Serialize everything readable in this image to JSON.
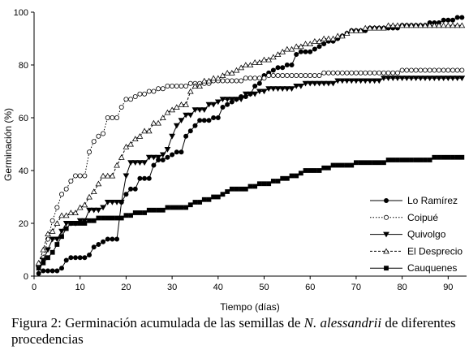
{
  "caption": {
    "prefix": "Figura 2: Germinación acumulada de las semillas de ",
    "species": "N. alessandrii",
    "suffix": " de diferentes procedencias"
  },
  "chart_data": {
    "type": "line",
    "title": "",
    "xlabel": "Tiempo (días)",
    "ylabel": "Germinación (%)",
    "xlim": [
      0,
      94
    ],
    "ylim": [
      0,
      100
    ],
    "xticks": [
      0,
      10,
      20,
      30,
      40,
      50,
      60,
      70,
      80,
      90
    ],
    "yticks": [
      0,
      20,
      40,
      60,
      80,
      100
    ],
    "grid": false,
    "legend_position": "bottom-right",
    "series": [
      {
        "name": "Lo Ramírez",
        "marker": "filled-circle",
        "line": "solid",
        "x": [
          1,
          2,
          3,
          4,
          5,
          6,
          7,
          8,
          9,
          10,
          11,
          12,
          13,
          14,
          15,
          16,
          17,
          18,
          19,
          20,
          21,
          22,
          23,
          24,
          25,
          26,
          27,
          28,
          29,
          30,
          31,
          32,
          33,
          34,
          35,
          36,
          37,
          38,
          39,
          40,
          41,
          42,
          43,
          44,
          45,
          46,
          47,
          48,
          49,
          50,
          51,
          52,
          53,
          54,
          55,
          56,
          57,
          58,
          59,
          60,
          61,
          62,
          63,
          64,
          65,
          66,
          67,
          68,
          69,
          70,
          71,
          72,
          73,
          74,
          75,
          76,
          77,
          78,
          79,
          80,
          81,
          82,
          83,
          84,
          85,
          86,
          87,
          88,
          89,
          90,
          91,
          92,
          93
        ],
        "y": [
          1,
          2,
          2,
          2,
          2,
          3,
          6,
          7,
          7,
          7,
          7,
          8,
          11,
          12,
          13,
          14,
          14,
          14,
          28,
          31,
          33,
          33,
          37,
          37,
          37,
          42,
          44,
          44,
          45,
          46,
          47,
          47,
          53,
          55,
          57,
          59,
          59,
          59,
          60,
          60,
          64,
          65,
          66,
          67,
          68,
          68,
          69,
          72,
          73,
          76,
          77,
          78,
          79,
          79,
          80,
          80,
          84,
          85,
          85,
          85,
          86,
          87,
          88,
          89,
          89,
          90,
          91,
          92,
          93,
          93,
          93,
          93,
          94,
          94,
          94,
          94,
          94,
          94,
          94,
          95,
          95,
          95,
          95,
          95,
          95,
          96,
          96,
          96,
          97,
          97,
          97,
          98,
          98
        ]
      },
      {
        "name": "Coipué",
        "marker": "open-circle",
        "line": "dotted",
        "x": [
          1,
          2,
          3,
          4,
          5,
          6,
          7,
          8,
          9,
          10,
          11,
          12,
          13,
          14,
          15,
          16,
          17,
          18,
          19,
          20,
          21,
          22,
          23,
          24,
          25,
          26,
          27,
          28,
          29,
          30,
          31,
          32,
          33,
          34,
          35,
          36,
          37,
          38,
          39,
          40,
          41,
          42,
          43,
          44,
          45,
          46,
          47,
          48,
          49,
          50,
          51,
          52,
          53,
          54,
          55,
          56,
          57,
          58,
          59,
          60,
          61,
          62,
          63,
          64,
          65,
          66,
          67,
          68,
          69,
          70,
          71,
          72,
          73,
          74,
          75,
          76,
          77,
          78,
          79,
          80,
          81,
          82,
          83,
          84,
          85,
          86,
          87,
          88,
          89,
          90,
          91,
          92,
          93
        ],
        "y": [
          4,
          7,
          14,
          21,
          26,
          31,
          33,
          36,
          38,
          38,
          38,
          47,
          51,
          53,
          54,
          60,
          60,
          60,
          64,
          67,
          67,
          68,
          69,
          69,
          70,
          70,
          71,
          71,
          72,
          72,
          72,
          72,
          72,
          73,
          73,
          73,
          73,
          73,
          74,
          74,
          74,
          74,
          74,
          74,
          74,
          75,
          75,
          75,
          75,
          75,
          76,
          76,
          76,
          76,
          76,
          76,
          76,
          76,
          76,
          76,
          76,
          76,
          77,
          77,
          77,
          77,
          77,
          77,
          77,
          77,
          77,
          77,
          77,
          77,
          77,
          77,
          77,
          77,
          77,
          78,
          78,
          78,
          78,
          78,
          78,
          78,
          78,
          78,
          78,
          78,
          78,
          78,
          78
        ]
      },
      {
        "name": "Quivolgo",
        "marker": "filled-triangle-down",
        "line": "solid",
        "x": [
          1,
          2,
          3,
          4,
          5,
          6,
          7,
          8,
          9,
          10,
          11,
          12,
          13,
          14,
          15,
          16,
          17,
          18,
          19,
          20,
          21,
          22,
          23,
          24,
          25,
          26,
          27,
          28,
          29,
          30,
          31,
          32,
          33,
          34,
          35,
          36,
          37,
          38,
          39,
          40,
          41,
          42,
          43,
          44,
          45,
          46,
          47,
          48,
          49,
          50,
          51,
          52,
          53,
          54,
          55,
          56,
          57,
          58,
          59,
          60,
          61,
          62,
          63,
          64,
          65,
          66,
          67,
          68,
          69,
          70,
          71,
          72,
          73,
          74,
          75,
          76,
          77,
          78,
          79,
          80,
          81,
          82,
          83,
          84,
          85,
          86,
          87,
          88,
          89,
          90,
          91,
          92,
          93
        ],
        "y": [
          3,
          6,
          10,
          14,
          14,
          17,
          20,
          20,
          20,
          21,
          21,
          25,
          25,
          25,
          26,
          28,
          28,
          28,
          28,
          38,
          43,
          43,
          43,
          43,
          45,
          45,
          45,
          46,
          48,
          53,
          57,
          59,
          61,
          61,
          63,
          63,
          63,
          65,
          65,
          66,
          67,
          67,
          67,
          67,
          67,
          69,
          69,
          69,
          70,
          70,
          71,
          71,
          71,
          71,
          71,
          71,
          72,
          72,
          73,
          73,
          73,
          73,
          73,
          73,
          73,
          74,
          74,
          74,
          74,
          74,
          74,
          74,
          74,
          74,
          74,
          75,
          75,
          75,
          75,
          75,
          75,
          75,
          75,
          75,
          75,
          75,
          75,
          75,
          75,
          75,
          75,
          75,
          75
        ]
      },
      {
        "name": "El Desprecio",
        "marker": "open-triangle-up",
        "line": "dashed",
        "x": [
          1,
          2,
          3,
          4,
          5,
          6,
          7,
          8,
          9,
          10,
          11,
          12,
          13,
          14,
          15,
          16,
          17,
          18,
          19,
          20,
          21,
          22,
          23,
          24,
          25,
          26,
          27,
          28,
          29,
          30,
          31,
          32,
          33,
          34,
          35,
          36,
          37,
          38,
          39,
          40,
          41,
          42,
          43,
          44,
          45,
          46,
          47,
          48,
          49,
          50,
          51,
          52,
          53,
          54,
          55,
          56,
          57,
          58,
          59,
          60,
          61,
          62,
          63,
          64,
          65,
          66,
          67,
          68,
          69,
          70,
          71,
          72,
          73,
          74,
          75,
          76,
          77,
          78,
          79,
          80,
          81,
          82,
          83,
          84,
          85,
          86,
          87,
          88,
          89,
          90,
          91,
          92,
          93
        ],
        "y": [
          5,
          10,
          16,
          17,
          20,
          23,
          23,
          24,
          24,
          26,
          27,
          30,
          32,
          35,
          38,
          38,
          38,
          42,
          45,
          49,
          50,
          52,
          53,
          55,
          55,
          58,
          58,
          60,
          62,
          63,
          64,
          65,
          65,
          70,
          72,
          72,
          74,
          74,
          75,
          75,
          76,
          77,
          77,
          78,
          79,
          80,
          80,
          81,
          81,
          82,
          82,
          83,
          84,
          85,
          86,
          86,
          87,
          87,
          88,
          88,
          89,
          89,
          90,
          90,
          90,
          91,
          91,
          92,
          93,
          93,
          93,
          94,
          94,
          94,
          94,
          94,
          95,
          95,
          95,
          95,
          95,
          95,
          95,
          95,
          95,
          95,
          95,
          95,
          95,
          95,
          95,
          95,
          95
        ]
      },
      {
        "name": "Cauquenes",
        "marker": "filled-square",
        "line": "solid",
        "x": [
          1,
          2,
          3,
          4,
          5,
          6,
          7,
          8,
          9,
          10,
          11,
          12,
          13,
          14,
          15,
          16,
          17,
          18,
          19,
          20,
          21,
          22,
          23,
          24,
          25,
          26,
          27,
          28,
          29,
          30,
          31,
          32,
          33,
          34,
          35,
          36,
          37,
          38,
          39,
          40,
          41,
          42,
          43,
          44,
          45,
          46,
          47,
          48,
          49,
          50,
          51,
          52,
          53,
          54,
          55,
          56,
          57,
          58,
          59,
          60,
          61,
          62,
          63,
          64,
          65,
          66,
          67,
          68,
          69,
          70,
          71,
          72,
          73,
          74,
          75,
          76,
          77,
          78,
          79,
          80,
          81,
          82,
          83,
          84,
          85,
          86,
          87,
          88,
          89,
          90,
          91,
          92,
          93
        ],
        "y": [
          3,
          5,
          7,
          9,
          12,
          15,
          18,
          20,
          20,
          20,
          20,
          21,
          21,
          22,
          22,
          22,
          22,
          22,
          22,
          23,
          23,
          24,
          24,
          24,
          25,
          25,
          25,
          25,
          26,
          26,
          26,
          26,
          26,
          27,
          28,
          28,
          29,
          29,
          30,
          30,
          31,
          32,
          33,
          33,
          33,
          33,
          34,
          34,
          35,
          35,
          35,
          36,
          36,
          37,
          37,
          38,
          38,
          39,
          40,
          40,
          40,
          40,
          41,
          41,
          42,
          42,
          42,
          42,
          42,
          43,
          43,
          43,
          43,
          43,
          43,
          43,
          44,
          44,
          44,
          44,
          44,
          44,
          44,
          44,
          44,
          44,
          45,
          45,
          45,
          45,
          45,
          45,
          45
        ]
      }
    ]
  }
}
